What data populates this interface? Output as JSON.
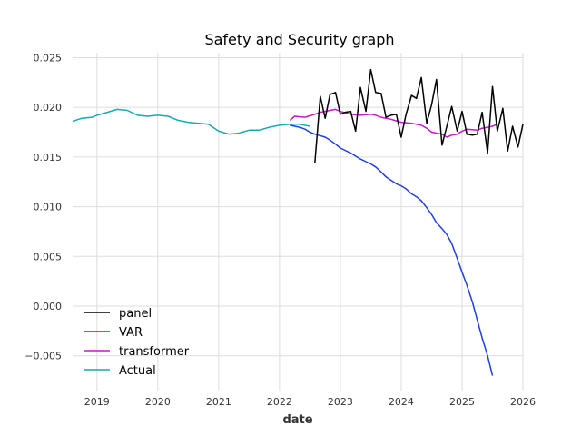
{
  "chart_data": {
    "type": "line",
    "title": "Safety and Security graph",
    "xlabel": "date",
    "ylabel": "",
    "xlim": [
      2018.6,
      2026.0
    ],
    "ylim": [
      -0.0085,
      0.0255
    ],
    "x_ticks": [
      2019,
      2020,
      2021,
      2022,
      2023,
      2024,
      2025,
      2026
    ],
    "x_tick_labels": [
      "2019",
      "2020",
      "2021",
      "2022",
      "2023",
      "2024",
      "2025",
      "2026"
    ],
    "y_ticks": [
      -0.005,
      0.0,
      0.005,
      0.01,
      0.015,
      0.02,
      0.025
    ],
    "y_tick_labels": [
      "−0.005",
      "0.000",
      "0.005",
      "0.010",
      "0.015",
      "0.020",
      "0.025"
    ],
    "grid": true,
    "legend_position": "lower-left",
    "series": [
      {
        "name": "panel",
        "color": "#000000",
        "points": [
          [
            2022.58,
            0.0144
          ],
          [
            2022.67,
            0.0211
          ],
          [
            2022.75,
            0.0189
          ],
          [
            2022.83,
            0.0213
          ],
          [
            2022.92,
            0.0215
          ],
          [
            2023.0,
            0.0193
          ],
          [
            2023.08,
            0.0195
          ],
          [
            2023.17,
            0.0196
          ],
          [
            2023.25,
            0.0176
          ],
          [
            2023.33,
            0.022
          ],
          [
            2023.42,
            0.0196
          ],
          [
            2023.5,
            0.0238
          ],
          [
            2023.58,
            0.0215
          ],
          [
            2023.67,
            0.0214
          ],
          [
            2023.75,
            0.019
          ],
          [
            2023.83,
            0.0192
          ],
          [
            2023.92,
            0.0193
          ],
          [
            2024.0,
            0.017
          ],
          [
            2024.08,
            0.0193
          ],
          [
            2024.17,
            0.0212
          ],
          [
            2024.25,
            0.0209
          ],
          [
            2024.33,
            0.023
          ],
          [
            2024.42,
            0.0184
          ],
          [
            2024.5,
            0.0203
          ],
          [
            2024.58,
            0.0228
          ],
          [
            2024.67,
            0.0162
          ],
          [
            2024.75,
            0.0181
          ],
          [
            2024.83,
            0.0201
          ],
          [
            2024.92,
            0.0176
          ],
          [
            2025.0,
            0.0196
          ],
          [
            2025.08,
            0.0173
          ],
          [
            2025.17,
            0.0172
          ],
          [
            2025.25,
            0.0173
          ],
          [
            2025.33,
            0.0195
          ],
          [
            2025.42,
            0.0154
          ],
          [
            2025.5,
            0.0221
          ],
          [
            2025.58,
            0.0176
          ],
          [
            2025.67,
            0.0199
          ],
          [
            2025.75,
            0.0156
          ],
          [
            2025.83,
            0.0181
          ],
          [
            2025.92,
            0.016
          ],
          [
            2026.0,
            0.0183
          ]
        ]
      },
      {
        "name": "VAR",
        "color": "#1f3fe0",
        "points": [
          [
            2022.17,
            0.0182
          ],
          [
            2022.33,
            0.018
          ],
          [
            2022.42,
            0.0178
          ],
          [
            2022.5,
            0.0175
          ],
          [
            2022.58,
            0.0173
          ],
          [
            2022.75,
            0.017
          ],
          [
            2022.83,
            0.0167
          ],
          [
            2022.92,
            0.0163
          ],
          [
            2023.0,
            0.0159
          ],
          [
            2023.17,
            0.0154
          ],
          [
            2023.33,
            0.0148
          ],
          [
            2023.5,
            0.0143
          ],
          [
            2023.58,
            0.014
          ],
          [
            2023.67,
            0.0135
          ],
          [
            2023.75,
            0.013
          ],
          [
            2023.92,
            0.0123
          ],
          [
            2024.0,
            0.0121
          ],
          [
            2024.08,
            0.0118
          ],
          [
            2024.17,
            0.0113
          ],
          [
            2024.25,
            0.011
          ],
          [
            2024.33,
            0.0106
          ],
          [
            2024.42,
            0.0099
          ],
          [
            2024.5,
            0.0092
          ],
          [
            2024.58,
            0.0084
          ],
          [
            2024.67,
            0.0078
          ],
          [
            2024.75,
            0.0072
          ],
          [
            2024.83,
            0.0063
          ],
          [
            2024.92,
            0.0048
          ],
          [
            2025.0,
            0.0034
          ],
          [
            2025.08,
            0.0021
          ],
          [
            2025.17,
            0.0004
          ],
          [
            2025.25,
            -0.0014
          ],
          [
            2025.33,
            -0.0032
          ],
          [
            2025.42,
            -0.005
          ],
          [
            2025.5,
            -0.007
          ]
        ]
      },
      {
        "name": "transformer",
        "color": "#c01cc8",
        "points": [
          [
            2022.17,
            0.0187
          ],
          [
            2022.25,
            0.0191
          ],
          [
            2022.42,
            0.019
          ],
          [
            2022.58,
            0.0193
          ],
          [
            2022.67,
            0.0195
          ],
          [
            2022.83,
            0.0197
          ],
          [
            2022.92,
            0.0198
          ],
          [
            2023.0,
            0.0196
          ],
          [
            2023.17,
            0.0193
          ],
          [
            2023.33,
            0.0192
          ],
          [
            2023.5,
            0.0193
          ],
          [
            2023.58,
            0.0192
          ],
          [
            2023.67,
            0.019
          ],
          [
            2023.83,
            0.0188
          ],
          [
            2024.0,
            0.0185
          ],
          [
            2024.17,
            0.0184
          ],
          [
            2024.33,
            0.0182
          ],
          [
            2024.42,
            0.0179
          ],
          [
            2024.5,
            0.0175
          ],
          [
            2024.67,
            0.0173
          ],
          [
            2024.75,
            0.017
          ],
          [
            2024.83,
            0.0172
          ],
          [
            2024.92,
            0.0173
          ],
          [
            2025.0,
            0.0176
          ],
          [
            2025.08,
            0.0178
          ],
          [
            2025.25,
            0.0177
          ],
          [
            2025.33,
            0.0179
          ],
          [
            2025.42,
            0.018
          ],
          [
            2025.5,
            0.0181
          ],
          [
            2025.58,
            0.0183
          ]
        ]
      },
      {
        "name": "Actual",
        "color": "#17a9b6",
        "points": [
          [
            2018.6,
            0.0186
          ],
          [
            2018.75,
            0.0189
          ],
          [
            2018.92,
            0.019
          ],
          [
            2019.0,
            0.0192
          ],
          [
            2019.17,
            0.0195
          ],
          [
            2019.33,
            0.0198
          ],
          [
            2019.5,
            0.0197
          ],
          [
            2019.67,
            0.0192
          ],
          [
            2019.83,
            0.0191
          ],
          [
            2020.0,
            0.0192
          ],
          [
            2020.17,
            0.0191
          ],
          [
            2020.33,
            0.0187
          ],
          [
            2020.5,
            0.0185
          ],
          [
            2020.67,
            0.0184
          ],
          [
            2020.83,
            0.0183
          ],
          [
            2021.0,
            0.0176
          ],
          [
            2021.17,
            0.0173
          ],
          [
            2021.33,
            0.0174
          ],
          [
            2021.5,
            0.0177
          ],
          [
            2021.67,
            0.0177
          ],
          [
            2021.83,
            0.018
          ],
          [
            2022.0,
            0.0182
          ],
          [
            2022.17,
            0.0183
          ],
          [
            2022.33,
            0.0183
          ],
          [
            2022.5,
            0.0181
          ]
        ]
      }
    ]
  }
}
